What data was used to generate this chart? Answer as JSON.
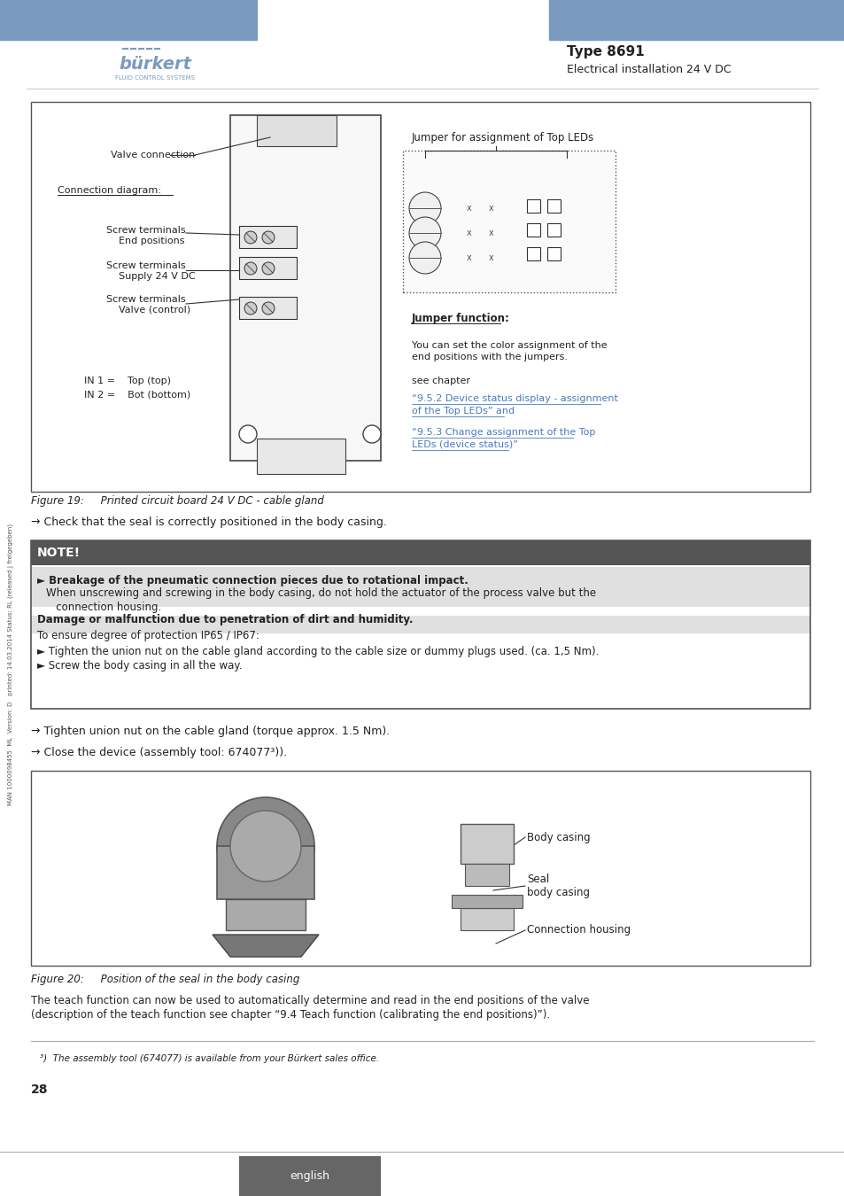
{
  "page_num": "28",
  "language_label": "english",
  "header_title": "Type 8691",
  "header_subtitle": "Electrical installation 24 V DC",
  "header_blue_color": "#7a9bbf",
  "figure19_caption": "Figure 19:     Printed circuit board 24 V DC - cable gland",
  "figure20_caption": "Figure 20:     Position of the seal in the body casing",
  "arrow_text1": "→ Check that the seal is correctly positioned in the body casing.",
  "note_header": "NOTE!",
  "note_bold1": "Breakage of the pneumatic connection pieces due to rotational impact.",
  "note_text1": "When unscrewing and screwing in the body casing, do not hold the actuator of the process valve but the\n   connection housing.",
  "note_bold2": "Damage or malfunction due to penetration of dirt and humidity.",
  "note_text2a": "To ensure degree of protection IP65 / IP67:",
  "note_bullet1": "Tighten the union nut on the cable gland according to the cable size or dummy plugs used. (ca. 1,5 Nm).",
  "note_bullet2": "Screw the body casing in all the way.",
  "arrow_text2": "→ Tighten union nut on the cable gland (torque approx. 1.5 Nm).",
  "arrow_text3": "→ Close the device (assembly tool: 674077³)).",
  "footnote": "³)  The assembly tool (674077) is available from your Bürkert sales office.",
  "side_text": "MAN 1000098455  ML  Version: D   printed: 14.03.2014 Status: RL (released | freigegeben)",
  "diagram_labels": {
    "valve_connection": "Valve connection",
    "connection_diagram": "Connection diagram:",
    "screw_end": "Screw terminals\n    End positions",
    "screw_supply": "Screw terminals\n    Supply 24 V DC",
    "screw_valve": "Screw terminals\n    Valve (control)",
    "in1": "IN 1 =    Top (top)",
    "in2": "IN 2 =    Bot (bottom)",
    "jumper_top": "Jumper for assignment of Top LEDs",
    "jumper_function": "Jumper function:",
    "jumper_text": "You can set the color assignment of the\nend positions with the jumpers.",
    "see_chapter": "see chapter",
    "ref1": "“9.5.2 Device status display - assignment\nof the Top LEDs” and",
    "ref2": "“9.5.3 Change assignment of the Top\nLEDs (device status)”"
  },
  "fig20_labels": {
    "body_casing": "Body casing",
    "seal": "Seal\nbody casing",
    "connection_housing": "Connection housing"
  },
  "dark_gray": "#555555",
  "light_gray": "#aaaaaa",
  "note_bg1": "#e8e8e8",
  "note_bg2": "#f5f5f5",
  "link_color": "#4a7abf",
  "border_color": "#333333",
  "text_color": "#222222"
}
